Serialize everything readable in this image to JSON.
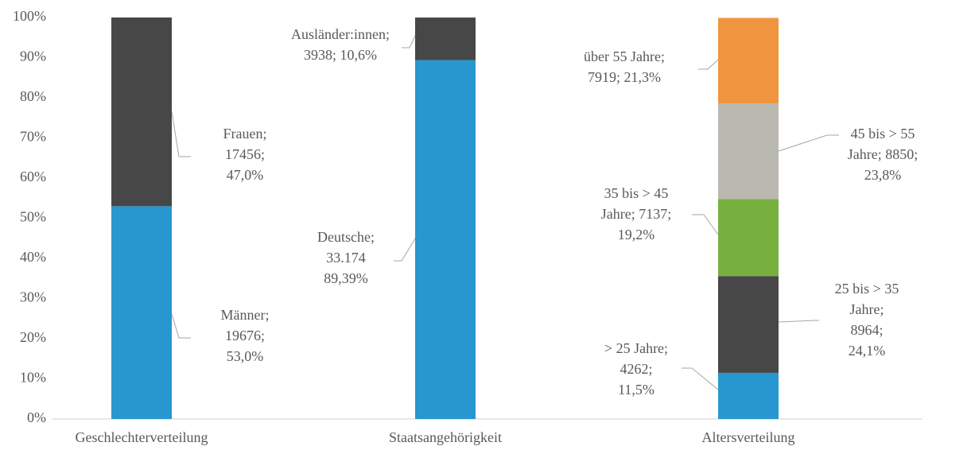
{
  "chart_data": {
    "type": "stacked_bar_100",
    "ylim": [
      0,
      100
    ],
    "yticks": [
      {
        "value": 0,
        "label": "0%"
      },
      {
        "value": 10,
        "label": "10%"
      },
      {
        "value": 20,
        "label": "20%"
      },
      {
        "value": 30,
        "label": "30%"
      },
      {
        "value": 40,
        "label": "40%"
      },
      {
        "value": 50,
        "label": "50%"
      },
      {
        "value": 60,
        "label": "60%"
      },
      {
        "value": 70,
        "label": "70%"
      },
      {
        "value": 80,
        "label": "80%"
      },
      {
        "value": 90,
        "label": "90%"
      },
      {
        "value": 100,
        "label": "100%"
      }
    ],
    "grid": false,
    "groups": [
      {
        "category": "Geschlechterverteilung",
        "segments": [
          {
            "value": 53.0,
            "color": "#2896cf",
            "value_label": [
              "Männer;",
              "19676;",
              "53,0%"
            ]
          },
          {
            "value": 47.0,
            "color": "#474747",
            "value_label": [
              "Frauen;",
              "17456;",
              "47,0%"
            ]
          }
        ]
      },
      {
        "category": "Staatsangehörigkeit",
        "segments": [
          {
            "value": 89.39,
            "color": "#2896cf",
            "value_label": [
              "Deutsche;",
              "33.174",
              "89,39%"
            ]
          },
          {
            "value": 10.6,
            "color": "#474747",
            "value_label": [
              "Ausländer:innen;",
              "3938; 10,6%"
            ]
          }
        ]
      },
      {
        "category": "Altersverteilung",
        "segments": [
          {
            "value": 11.5,
            "color": "#2896cf",
            "value_label": [
              "> 25 Jahre;",
              "4262;",
              "11,5%"
            ]
          },
          {
            "value": 24.1,
            "color": "#474747",
            "value_label": [
              "25 bis > 35",
              "Jahre;",
              "8964;",
              "24,1%"
            ]
          },
          {
            "value": 19.2,
            "color": "#78b040",
            "value_label": [
              "35 bis > 45",
              "Jahre; 7137;",
              "19,2%"
            ]
          },
          {
            "value": 23.8,
            "color": "#bab9b0",
            "value_label": [
              "45 bis > 55",
              "Jahre; 8850;",
              "23,8%"
            ]
          },
          {
            "value": 21.3,
            "color": "#f0953f",
            "value_label": [
              "über 55 Jahre;",
              "7919; 21,3%"
            ]
          }
        ]
      }
    ]
  }
}
